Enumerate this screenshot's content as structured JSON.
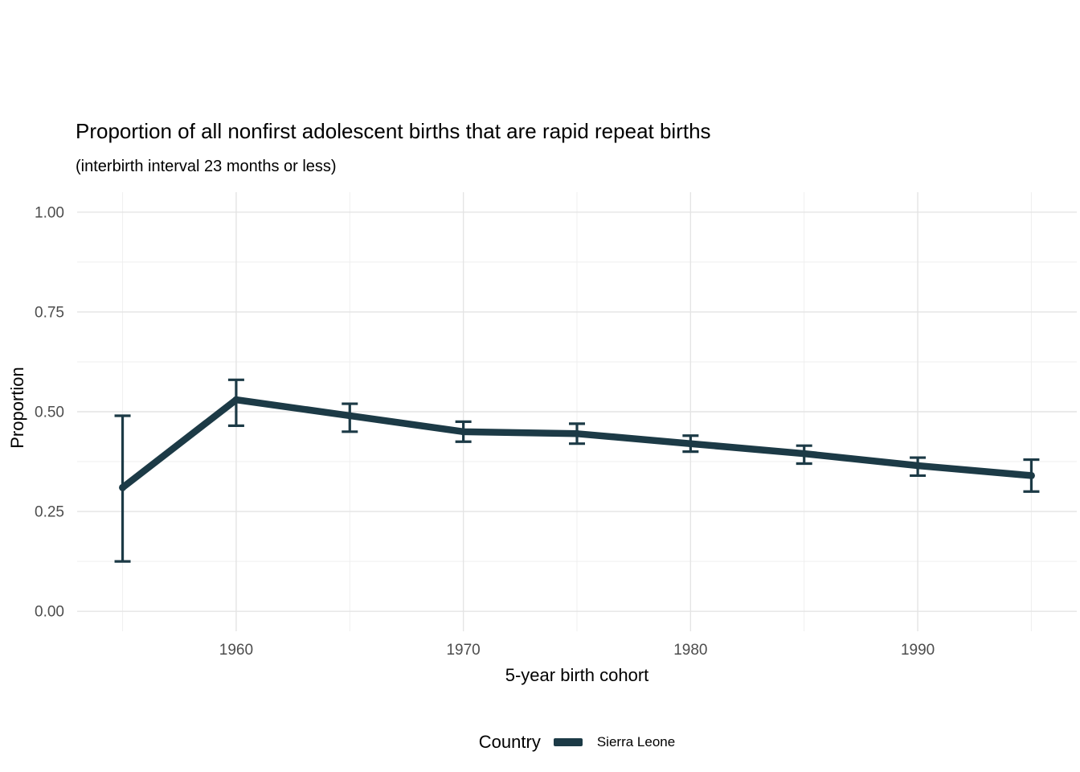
{
  "colors": {
    "line": "#1c3a46",
    "grid_major": "#e4e4e4",
    "grid_minor": "#efefef",
    "tick_label": "#4d4d4d",
    "text": "#000000",
    "background": "#ffffff"
  },
  "legend": {
    "title": "Country",
    "position": "bottom",
    "entries": [
      {
        "label": "Sierra Leone",
        "color": "#1c3a46"
      }
    ]
  },
  "chart_data": {
    "type": "line",
    "title": "Proportion of all nonfirst adolescent births that are rapid repeat births",
    "subtitle": "(interbirth interval 23 months or less)",
    "xlabel": "5-year birth cohort",
    "ylabel": "Proportion",
    "x": [
      1955,
      1960,
      1965,
      1970,
      1975,
      1980,
      1985,
      1990,
      1995
    ],
    "series": [
      {
        "name": "Sierra Leone",
        "color": "#1c3a46",
        "values": [
          0.31,
          0.53,
          0.49,
          0.45,
          0.445,
          0.42,
          0.395,
          0.365,
          0.34
        ],
        "ci_low": [
          0.125,
          0.465,
          0.45,
          0.425,
          0.42,
          0.4,
          0.37,
          0.34,
          0.3
        ],
        "ci_high": [
          0.49,
          0.58,
          0.52,
          0.475,
          0.47,
          0.44,
          0.415,
          0.385,
          0.38
        ]
      }
    ],
    "xlim": [
      1953,
      1997
    ],
    "ylim": [
      -0.05,
      1.05
    ],
    "grid": "on",
    "legend_position": "bottom",
    "x_ticks": {
      "major": [
        {
          "value": 1960,
          "label": "1960"
        },
        {
          "value": 1970,
          "label": "1970"
        },
        {
          "value": 1980,
          "label": "1980"
        },
        {
          "value": 1990,
          "label": "1990"
        }
      ],
      "minor": [
        1955,
        1965,
        1975,
        1985,
        1995
      ]
    },
    "y_ticks": {
      "major": [
        {
          "value": 0.0,
          "label": "0.00"
        },
        {
          "value": 0.25,
          "label": "0.25"
        },
        {
          "value": 0.5,
          "label": "0.50"
        },
        {
          "value": 0.75,
          "label": "0.75"
        },
        {
          "value": 1.0,
          "label": "1.00"
        }
      ],
      "minor": [
        0.125,
        0.375,
        0.625,
        0.875
      ]
    }
  }
}
